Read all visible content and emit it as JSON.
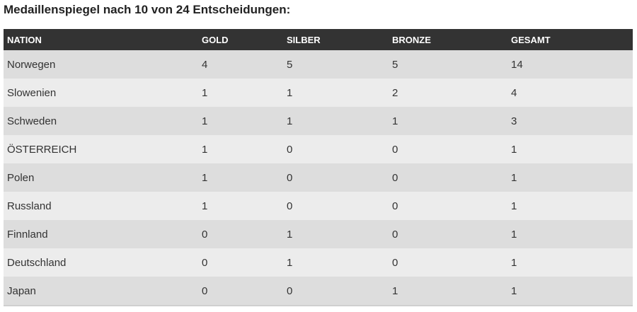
{
  "title": "Medaillenspiegel nach 10 von 24 Entscheidungen:",
  "table": {
    "headers": [
      "NATION",
      "GOLD",
      "SILBER",
      "BRONZE",
      "GESAMT"
    ],
    "rows": [
      [
        "Norwegen",
        "4",
        "5",
        "5",
        "14"
      ],
      [
        "Slowenien",
        "1",
        "1",
        "2",
        "4"
      ],
      [
        "Schweden",
        "1",
        "1",
        "1",
        "3"
      ],
      [
        "ÖSTERREICH",
        "1",
        "0",
        "0",
        "1"
      ],
      [
        "Polen",
        "1",
        "0",
        "0",
        "1"
      ],
      [
        "Russland",
        "1",
        "0",
        "0",
        "1"
      ],
      [
        "Finnland",
        "0",
        "1",
        "0",
        "1"
      ],
      [
        "Deutschland",
        "0",
        "1",
        "0",
        "1"
      ],
      [
        "Japan",
        "0",
        "0",
        "1",
        "1"
      ]
    ]
  },
  "colors": {
    "header_bg": "#333333",
    "header_text": "#ffffff",
    "row_dark": "#dddddd",
    "row_light": "#ececec",
    "text": "#333333"
  }
}
